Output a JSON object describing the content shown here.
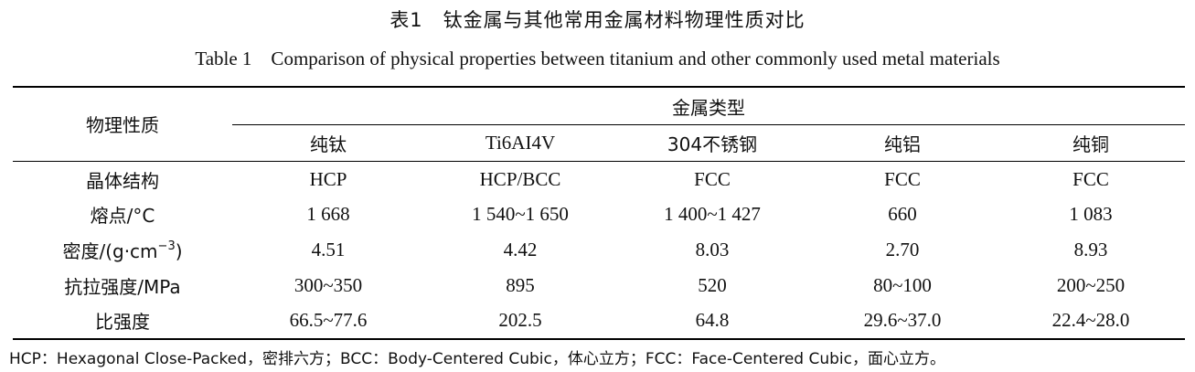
{
  "title_cn": "表1　钛金属与其他常用金属材料物理性质对比",
  "title_en": "Table 1　Comparison of physical properties between titanium and other commonly used metal materials",
  "table": {
    "row_header": "物理性质",
    "group_header": "金属类型",
    "columns": [
      "纯钛",
      "Ti6AI4V",
      "304不锈钢",
      "纯铝",
      "纯铜"
    ],
    "rows": [
      {
        "label": "晶体结构",
        "values": [
          "HCP",
          "HCP/BCC",
          "FCC",
          "FCC",
          "FCC"
        ]
      },
      {
        "label": "熔点/°C",
        "values": [
          "1 668",
          "1 540~1 650",
          "1 400~1 427",
          "660",
          "1 083"
        ]
      },
      {
        "label_main": "密度/(g·cm",
        "label_sup": "−3",
        "label_end": ")",
        "values": [
          "4.51",
          "4.42",
          "8.03",
          "2.70",
          "8.93"
        ]
      },
      {
        "label": "抗拉强度/MPa",
        "values": [
          "300~350",
          "895",
          "520",
          "80~100",
          "200~250"
        ]
      },
      {
        "label": "比强度",
        "values": [
          "66.5~77.6",
          "202.5",
          "64.8",
          "29.6~37.0",
          "22.4~28.0"
        ]
      }
    ]
  },
  "footnote": "HCP：Hexagonal Close-Packed，密排六方；BCC：Body-Centered Cubic，体心立方；FCC：Face-Centered Cubic，面心立方。"
}
